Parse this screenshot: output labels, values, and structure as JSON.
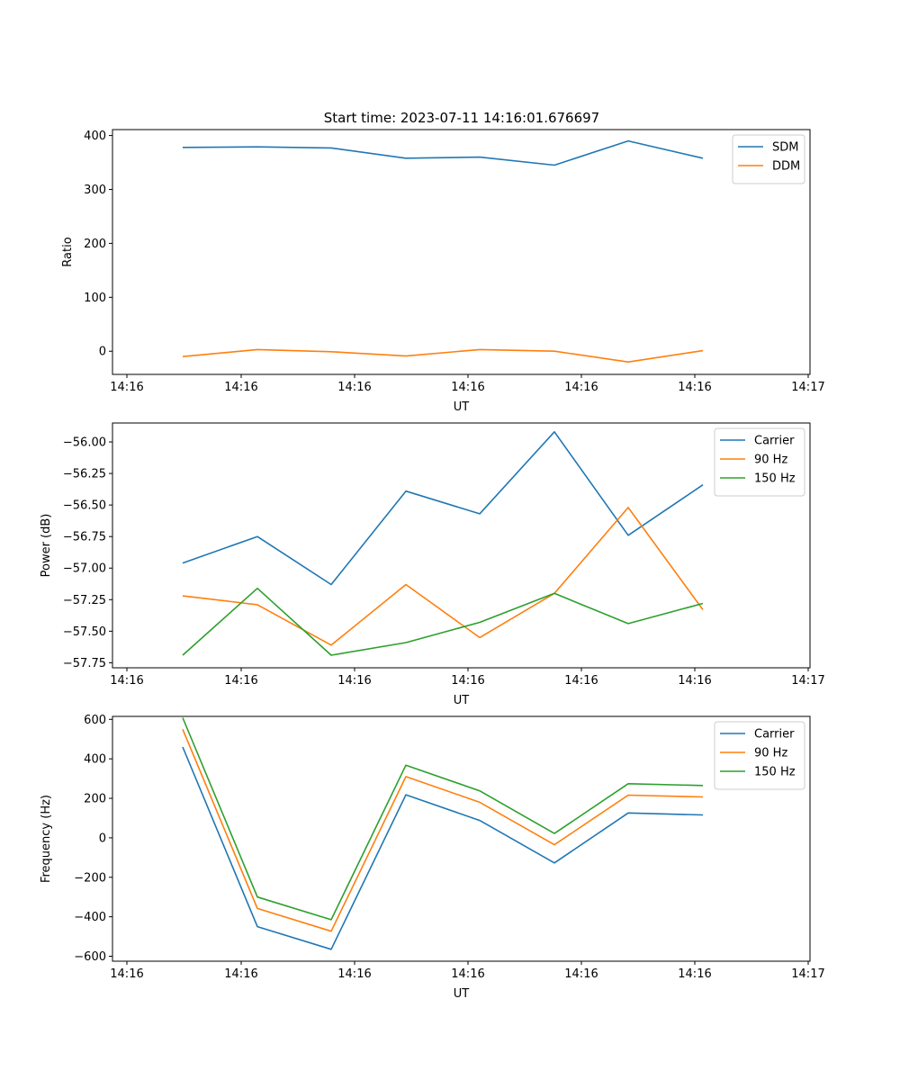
{
  "figure": {
    "title": "Start time: 2023-07-11 14:16:01.676697"
  },
  "chart_data": [
    {
      "type": "line",
      "title": "Start time: 2023-07-11 14:16:01.676697",
      "xlabel": "UT",
      "ylabel": "Ratio",
      "x_tick_labels": [
        "14:16",
        "14:16",
        "14:16",
        "14:16",
        "14:16",
        "14:16",
        "14:17"
      ],
      "y_ticks": [
        0,
        100,
        200,
        300,
        400
      ],
      "y_tick_labels": [
        "0",
        "100",
        "200",
        "300",
        "400"
      ],
      "ylim": [
        -43,
        411
      ],
      "legend_position": "top-right",
      "series": [
        {
          "name": "SDM",
          "color": "#1f77b4",
          "values": [
            378,
            379,
            377,
            358,
            360,
            345,
            390,
            358
          ]
        },
        {
          "name": "DDM",
          "color": "#ff7f0e",
          "values": [
            -10,
            3,
            -1,
            -9,
            3,
            0,
            -20,
            1
          ]
        }
      ]
    },
    {
      "type": "line",
      "xlabel": "UT",
      "ylabel": "Power (dB)",
      "x_tick_labels": [
        "14:16",
        "14:16",
        "14:16",
        "14:16",
        "14:16",
        "14:16",
        "14:17"
      ],
      "y_ticks": [
        -57.75,
        -57.5,
        -57.25,
        -57.0,
        -56.75,
        -56.5,
        -56.25,
        -56.0
      ],
      "y_tick_labels": [
        "−57.75",
        "−57.50",
        "−57.25",
        "−57.00",
        "−56.75",
        "−56.50",
        "−56.25",
        "−56.00"
      ],
      "ylim": [
        -57.79,
        -55.85
      ],
      "legend_position": "top-right",
      "series": [
        {
          "name": "Carrier",
          "color": "#1f77b4",
          "values": [
            -56.96,
            -56.75,
            -57.13,
            -56.39,
            -56.57,
            -55.92,
            -56.74,
            -56.34
          ]
        },
        {
          "name": "90 Hz",
          "color": "#ff7f0e",
          "values": [
            -57.22,
            -57.29,
            -57.61,
            -57.13,
            -57.55,
            -57.2,
            -56.52,
            -57.33
          ]
        },
        {
          "name": "150 Hz",
          "color": "#2ca02c",
          "values": [
            -57.69,
            -57.16,
            -57.69,
            -57.59,
            -57.43,
            -57.2,
            -57.44,
            -57.28
          ]
        }
      ]
    },
    {
      "type": "line",
      "xlabel": "UT",
      "ylabel": "Frequency (Hz)",
      "x_tick_labels": [
        "14:16",
        "14:16",
        "14:16",
        "14:16",
        "14:16",
        "14:16",
        "14:17"
      ],
      "y_ticks": [
        -600,
        -400,
        -200,
        0,
        200,
        400,
        600
      ],
      "y_tick_labels": [
        "−600",
        "−400",
        "−200",
        "0",
        "200",
        "400",
        "600"
      ],
      "ylim": [
        -625,
        615
      ],
      "legend_position": "top-right",
      "series": [
        {
          "name": "Carrier",
          "color": "#1f77b4",
          "values": [
            460,
            -450,
            -565,
            218,
            88,
            -127,
            126,
            116
          ]
        },
        {
          "name": "90 Hz",
          "color": "#ff7f0e",
          "values": [
            550,
            -358,
            -473,
            310,
            180,
            -35,
            216,
            207
          ]
        },
        {
          "name": "150 Hz",
          "color": "#2ca02c",
          "values": [
            608,
            -300,
            -415,
            368,
            238,
            22,
            274,
            265
          ]
        }
      ]
    }
  ]
}
